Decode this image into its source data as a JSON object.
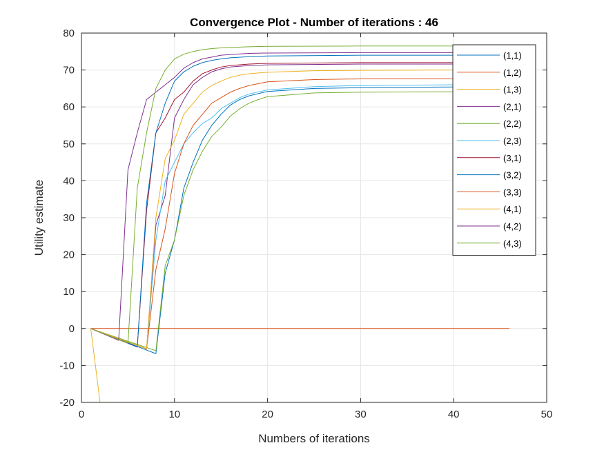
{
  "chart_data": {
    "type": "line",
    "title": "Convergence Plot - Number of iterations : 46",
    "xlabel": "Numbers of iterations",
    "ylabel": "Utility estimate",
    "xlim": [
      0,
      50
    ],
    "ylim": [
      -20,
      80
    ],
    "xticks": [
      0,
      10,
      20,
      30,
      40,
      50
    ],
    "yticks": [
      -20,
      -10,
      0,
      10,
      20,
      30,
      40,
      50,
      60,
      70,
      80
    ],
    "grid": true,
    "legend_position": "top-right",
    "series": [
      {
        "name": "(1,1)",
        "color": "#0072BD",
        "points": [
          [
            1,
            0
          ],
          [
            8,
            -6.8
          ],
          [
            9,
            15
          ],
          [
            10,
            24
          ],
          [
            11,
            38
          ],
          [
            12,
            45
          ],
          [
            13,
            51
          ],
          [
            14,
            55
          ],
          [
            15,
            58
          ],
          [
            16,
            60.5
          ],
          [
            17,
            62
          ],
          [
            18,
            63
          ],
          [
            20,
            64.2
          ],
          [
            25,
            65
          ],
          [
            30,
            65.2
          ],
          [
            40,
            65.4
          ],
          [
            46,
            65.4
          ]
        ]
      },
      {
        "name": "(1,2)",
        "color": "#D95319",
        "points": [
          [
            1,
            0
          ],
          [
            46,
            0
          ]
        ]
      },
      {
        "name": "(1,3)",
        "color": "#EDB120",
        "points": [
          [
            1,
            0
          ],
          [
            2,
            -20
          ],
          [
            46,
            -20
          ]
        ]
      },
      {
        "name": "(2,1)",
        "color": "#7E2F8E",
        "points": [
          [
            1,
            0
          ],
          [
            7,
            -5.5
          ],
          [
            8,
            28
          ],
          [
            9,
            36
          ],
          [
            10,
            57
          ],
          [
            11,
            62
          ],
          [
            12,
            66
          ],
          [
            13,
            68
          ],
          [
            14,
            69.5
          ],
          [
            15,
            70.3
          ],
          [
            16,
            70.8
          ],
          [
            18,
            71.2
          ],
          [
            20,
            71.4
          ],
          [
            30,
            71.6
          ],
          [
            40,
            71.6
          ],
          [
            46,
            71.6
          ]
        ]
      },
      {
        "name": "(2,2)",
        "color": "#77AC30",
        "points": [
          [
            1,
            0
          ],
          [
            8,
            -6
          ],
          [
            9,
            17
          ],
          [
            10,
            24
          ],
          [
            11,
            36
          ],
          [
            12,
            43
          ],
          [
            13,
            48
          ],
          [
            14,
            52
          ],
          [
            15,
            54.5
          ],
          [
            16,
            57.5
          ],
          [
            17,
            59.5
          ],
          [
            18,
            61
          ],
          [
            19,
            62
          ],
          [
            20,
            62.8
          ],
          [
            25,
            63.8
          ],
          [
            30,
            64
          ],
          [
            40,
            64.1
          ],
          [
            46,
            64.1
          ]
        ]
      },
      {
        "name": "(2,3)",
        "color": "#4DBEEE",
        "points": [
          [
            1,
            0
          ],
          [
            7,
            -5.5
          ],
          [
            8,
            24
          ],
          [
            9,
            40
          ],
          [
            10,
            45
          ],
          [
            11,
            50
          ],
          [
            12,
            53
          ],
          [
            13,
            55.5
          ],
          [
            14,
            57
          ],
          [
            15,
            59.5
          ],
          [
            16,
            61
          ],
          [
            17,
            62.5
          ],
          [
            18,
            63.5
          ],
          [
            20,
            64.6
          ],
          [
            25,
            65.5
          ],
          [
            30,
            65.8
          ],
          [
            40,
            66
          ],
          [
            46,
            66
          ]
        ]
      },
      {
        "name": "(3,1)",
        "color": "#A2142F",
        "points": [
          [
            1,
            0
          ],
          [
            6,
            -5
          ],
          [
            7,
            32
          ],
          [
            8,
            53
          ],
          [
            9,
            57
          ],
          [
            10,
            62
          ],
          [
            11,
            64
          ],
          [
            12,
            67
          ],
          [
            13,
            69
          ],
          [
            14,
            70
          ],
          [
            15,
            70.8
          ],
          [
            16,
            71.2
          ],
          [
            18,
            71.6
          ],
          [
            20,
            71.8
          ],
          [
            30,
            72
          ],
          [
            40,
            72
          ],
          [
            46,
            72
          ]
        ]
      },
      {
        "name": "(3,2)",
        "color": "#0072BD",
        "points": [
          [
            1,
            0
          ],
          [
            6,
            -5
          ],
          [
            7,
            34
          ],
          [
            8,
            53
          ],
          [
            9,
            61
          ],
          [
            10,
            67
          ],
          [
            11,
            69.5
          ],
          [
            12,
            71
          ],
          [
            13,
            72
          ],
          [
            14,
            72.6
          ],
          [
            15,
            73
          ],
          [
            16,
            73.3
          ],
          [
            18,
            73.6
          ],
          [
            20,
            73.8
          ],
          [
            30,
            74
          ],
          [
            40,
            74
          ],
          [
            46,
            74
          ]
        ]
      },
      {
        "name": "(3,3)",
        "color": "#D95319",
        "points": [
          [
            1,
            0
          ],
          [
            7,
            -5.5
          ],
          [
            8,
            16
          ],
          [
            9,
            27
          ],
          [
            10,
            42
          ],
          [
            11,
            50
          ],
          [
            12,
            55
          ],
          [
            13,
            58
          ],
          [
            14,
            61
          ],
          [
            15,
            62.5
          ],
          [
            16,
            64
          ],
          [
            17,
            65
          ],
          [
            18,
            65.8
          ],
          [
            20,
            66.8
          ],
          [
            25,
            67.4
          ],
          [
            30,
            67.6
          ],
          [
            40,
            67.6
          ],
          [
            46,
            67.6
          ]
        ]
      },
      {
        "name": "(4,1)",
        "color": "#EDB120",
        "points": [
          [
            1,
            0
          ],
          [
            7,
            -5.5
          ],
          [
            8,
            30
          ],
          [
            9,
            46
          ],
          [
            10,
            51
          ],
          [
            11,
            58
          ],
          [
            12,
            61
          ],
          [
            13,
            64
          ],
          [
            14,
            65.8
          ],
          [
            15,
            67
          ],
          [
            16,
            68
          ],
          [
            17,
            68.6
          ],
          [
            18,
            69
          ],
          [
            20,
            69.4
          ],
          [
            25,
            69.8
          ],
          [
            30,
            69.9
          ],
          [
            40,
            70
          ],
          [
            46,
            70
          ]
        ]
      },
      {
        "name": "(4,2)",
        "color": "#7E2F8E",
        "points": [
          [
            1,
            0
          ],
          [
            4,
            -3.2
          ],
          [
            5,
            43
          ],
          [
            6,
            53
          ],
          [
            7,
            62
          ],
          [
            8,
            64
          ],
          [
            9,
            66
          ],
          [
            10,
            68
          ],
          [
            11,
            70.5
          ],
          [
            12,
            72
          ],
          [
            13,
            73
          ],
          [
            14,
            73.5
          ],
          [
            15,
            74
          ],
          [
            16,
            74.2
          ],
          [
            18,
            74.5
          ],
          [
            20,
            74.6
          ],
          [
            30,
            74.7
          ],
          [
            40,
            74.7
          ],
          [
            46,
            74.7
          ]
        ]
      },
      {
        "name": "(4,3)",
        "color": "#77AC30",
        "points": [
          [
            1,
            0
          ],
          [
            5,
            -4
          ],
          [
            6,
            38
          ],
          [
            7,
            53
          ],
          [
            8,
            65
          ],
          [
            9,
            70
          ],
          [
            10,
            73
          ],
          [
            11,
            74.3
          ],
          [
            12,
            75
          ],
          [
            13,
            75.5
          ],
          [
            14,
            75.8
          ],
          [
            15,
            76
          ],
          [
            16,
            76.1
          ],
          [
            18,
            76.3
          ],
          [
            20,
            76.4
          ],
          [
            30,
            76.5
          ],
          [
            40,
            76.5
          ],
          [
            46,
            76.5
          ]
        ]
      }
    ]
  }
}
